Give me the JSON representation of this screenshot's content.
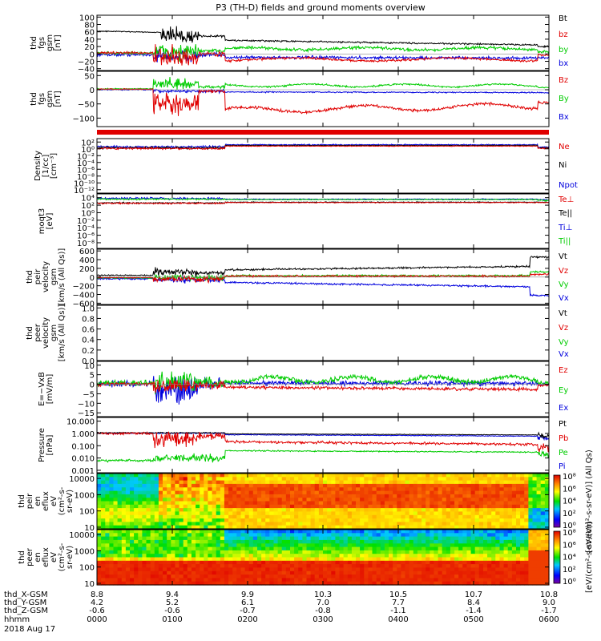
{
  "chart_data": {
    "type": "line",
    "title": "P3 (TH-D) fields and ground moments overview",
    "date_label": "2018 Aug 17",
    "panels": [
      {
        "ylabel": [
          "thd",
          "fgs",
          "gsm",
          "[nT]"
        ],
        "ticks": [
          100,
          80,
          60,
          40,
          20,
          0,
          -20,
          -40
        ],
        "tick_labels": [
          "100",
          "80",
          "60",
          "40",
          "20",
          "0",
          "−20",
          "−40"
        ],
        "scale": "linear",
        "legend": [
          {
            "name": "Bt",
            "color": "#000000"
          },
          {
            "name": "bz",
            "color": "#e00000"
          },
          {
            "name": "by",
            "color": "#00cc00"
          },
          {
            "name": "bx",
            "color": "#0000dd"
          }
        ]
      },
      {
        "ylabel": [
          "thd",
          "fgs",
          "gsm",
          "[nT]"
        ],
        "ticks": [
          50,
          0,
          -50,
          -100
        ],
        "tick_labels": [
          "50",
          "0",
          "−50",
          "−100"
        ],
        "scale": "linear",
        "legend": [
          {
            "name": "Bz",
            "color": "#e00000"
          },
          {
            "name": "By",
            "color": "#00cc00"
          },
          {
            "name": "Bx",
            "color": "#0000dd"
          }
        ]
      },
      {
        "ylabel": [
          "Density",
          "[1/cc]",
          "[cm⁻³]"
        ],
        "ticks": [
          2,
          0,
          -2,
          -4,
          -6,
          -8,
          -10,
          -12
        ],
        "tick_labels": [
          "10²",
          "10⁰",
          "10⁻²",
          "10⁻⁴",
          "10⁻⁶",
          "10⁻⁸",
          "10⁻¹⁰",
          "10⁻¹²"
        ],
        "scale": "log",
        "legend": [
          {
            "name": "Ne",
            "color": "#e00000"
          },
          {
            "name": "Ni",
            "color": "#000000"
          },
          {
            "name": "Npot",
            "color": "#0000dd"
          }
        ]
      },
      {
        "ylabel": [
          "moqt3",
          "[eV]"
        ],
        "ticks": [
          4,
          2,
          0,
          -2,
          -4,
          -6,
          -8
        ],
        "tick_labels": [
          "10⁴",
          "10²",
          "10⁰",
          "10⁻²",
          "10⁻⁴",
          "10⁻⁶",
          "10⁻⁸"
        ],
        "scale": "log",
        "legend": [
          {
            "name": "Te⊥",
            "color": "#e00000"
          },
          {
            "name": "Te||",
            "color": "#000000"
          },
          {
            "name": "Ti⊥",
            "color": "#0000dd"
          },
          {
            "name": "Ti||",
            "color": "#00cc00"
          }
        ]
      },
      {
        "ylabel": [
          "thd",
          "peir",
          "velocity",
          "gsm",
          "[km/s (All Qs)]"
        ],
        "ticks": [
          600,
          400,
          200,
          0,
          -200,
          -400,
          -600
        ],
        "tick_labels": [
          "600",
          "400",
          "200",
          "0",
          "−200",
          "−400",
          "−600"
        ],
        "scale": "linear",
        "legend": [
          {
            "name": "Vt",
            "color": "#000000"
          },
          {
            "name": "Vz",
            "color": "#e00000"
          },
          {
            "name": "Vy",
            "color": "#00cc00"
          },
          {
            "name": "Vx",
            "color": "#0000dd"
          }
        ]
      },
      {
        "ylabel": [
          "thd",
          "peer",
          "velocity",
          "gsm",
          "[km/s (All Qs)]"
        ],
        "ticks": [
          1.0,
          0.8,
          0.6,
          0.4,
          0.2,
          0.0
        ],
        "tick_labels": [
          "1.0",
          "0.8",
          "0.6",
          "0.4",
          "0.2",
          "0.0"
        ],
        "scale": "linear",
        "legend": [
          {
            "name": "Vt",
            "color": "#000000"
          },
          {
            "name": "Vz",
            "color": "#e00000"
          },
          {
            "name": "Vy",
            "color": "#00cc00"
          },
          {
            "name": "Vx",
            "color": "#0000dd"
          }
        ]
      },
      {
        "ylabel": [
          "E=−VxB",
          "[mV/m]"
        ],
        "ticks": [
          10,
          5,
          0,
          -5,
          -10,
          -15
        ],
        "tick_labels": [
          "10",
          "5",
          "0",
          "−5",
          "−10",
          "−15"
        ],
        "scale": "linear",
        "legend": [
          {
            "name": "Ez",
            "color": "#e00000"
          },
          {
            "name": "Ey",
            "color": "#00cc00"
          },
          {
            "name": "Ex",
            "color": "#0000dd"
          }
        ]
      },
      {
        "ylabel": [
          "Pressure",
          "[nPa]"
        ],
        "ticks": [
          1,
          0,
          -1,
          -2,
          -3
        ],
        "tick_labels": [
          "10.000",
          "1.000",
          "0.100",
          "0.010",
          "0.001"
        ],
        "scale": "log",
        "legend": [
          {
            "name": "Pt",
            "color": "#000000"
          },
          {
            "name": "Pb",
            "color": "#e00000"
          },
          {
            "name": "Pe",
            "color": "#00cc00"
          },
          {
            "name": "Pi",
            "color": "#0000dd"
          }
        ]
      },
      {
        "ylabel": [
          "thd",
          "peir",
          "en",
          "eflux",
          "eV",
          "(cm²-s-",
          "sr-eV)"
        ],
        "ticks": [
          4,
          3,
          2,
          1
        ],
        "tick_labels": [
          "10000",
          "1000",
          "100",
          "10"
        ],
        "scale": "log",
        "legend": []
      },
      {
        "ylabel": [
          "thd",
          "peer",
          "en",
          "eflux",
          "eV",
          "(cm²-s-",
          "sr-eV)"
        ],
        "ticks": [
          4,
          3,
          2,
          1
        ],
        "tick_labels": [
          "10000",
          "1000",
          "100",
          "10"
        ],
        "scale": "log",
        "legend": []
      }
    ],
    "colorbar": {
      "label_top": "[eV/(cm²-s-sr-eV)] (All Qs)",
      "label_bottom": "[eV/(cm²-s-sr-eV)]",
      "ticks_top": [
        "10⁸",
        "10⁶",
        "10⁴",
        "10²",
        "10⁰"
      ],
      "ticks_bottom": [
        "10⁸",
        "10⁶",
        "10⁴",
        "10²",
        "10⁰"
      ]
    },
    "x_axis": {
      "row_labels": [
        "thd_X-GSM",
        "thd_Y-GSM",
        "thd_Z-GSM",
        "hhmm"
      ],
      "columns": [
        [
          "8.8",
          "4.2",
          "-0.6",
          "0000"
        ],
        [
          "9.4",
          "5.2",
          "-0.6",
          "0100"
        ],
        [
          "9.9",
          "6.1",
          "-0.7",
          "0200"
        ],
        [
          "10.3",
          "7.0",
          "-0.8",
          "0300"
        ],
        [
          "10.5",
          "7.7",
          "-1.1",
          "0400"
        ],
        [
          "10.7",
          "8.4",
          "-1.4",
          "0500"
        ],
        [
          "10.8",
          "9.0",
          "-1.7",
          "0600"
        ]
      ],
      "hours": [
        0,
        1,
        2,
        3,
        4,
        5,
        6
      ]
    }
  }
}
